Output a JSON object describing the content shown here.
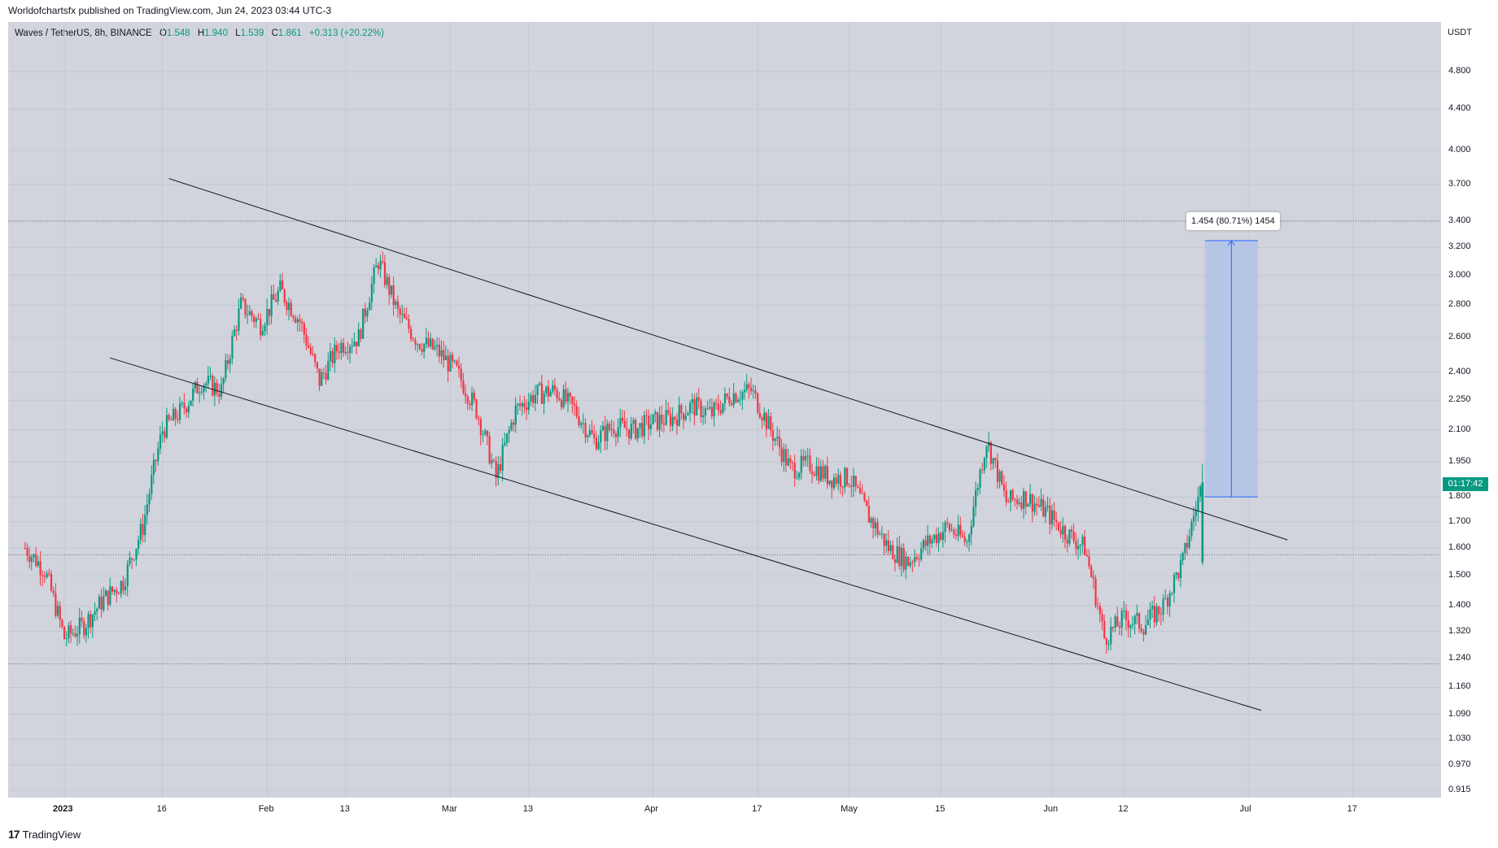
{
  "header": {
    "publisher_text": "Worldofchartsfx published on TradingView.com, Jun 24, 2023 03:44 UTC-3"
  },
  "legend": {
    "symbol": "Waves / TetherUS, 8h, BINANCE",
    "open_label": "O",
    "open": "1.548",
    "high_label": "H",
    "high": "1.940",
    "low_label": "L",
    "low": "1.539",
    "close_label": "C",
    "close": "1.861",
    "change": "+0.313 (+20.22%)"
  },
  "price_axis": {
    "unit": "USDT",
    "ticks": [
      "4.800",
      "4.400",
      "4.000",
      "3.700",
      "3.400",
      "3.200",
      "3.000",
      "2.800",
      "2.600",
      "2.400",
      "2.250",
      "2.100",
      "1.950",
      "1.800",
      "1.700",
      "1.600",
      "1.500",
      "1.400",
      "1.320",
      "1.240",
      "1.160",
      "1.090",
      "1.030",
      "0.970",
      "0.915"
    ]
  },
  "time_axis": {
    "ticks": [
      "2023",
      "16",
      "Feb",
      "13",
      "Mar",
      "13",
      "Apr",
      "17",
      "May",
      "15",
      "Jun",
      "12",
      "Jul",
      "17"
    ]
  },
  "countdown": "01:17:42",
  "measurement": {
    "label": "1.454 (80.71%) 1454"
  },
  "footer": {
    "brand": "TradingView",
    "logo_glyph": "17"
  },
  "colors": {
    "up": "#089981",
    "down": "#f23645",
    "pane_bg": "#d1d4dc",
    "measure_fill": "#b2c3e8",
    "measure_line": "#2962ff"
  },
  "chart_data": {
    "type": "candlestick",
    "symbol": "Waves / TetherUS",
    "interval": "8h",
    "exchange": "BINANCE",
    "scale": "log",
    "ylim": [
      0.9,
      5.0
    ],
    "x": [
      "2022-12-26",
      "2022-12-29",
      "2023-01-01",
      "2023-01-04",
      "2023-01-07",
      "2023-01-10",
      "2023-01-13",
      "2023-01-16",
      "2023-01-19",
      "2023-01-22",
      "2023-01-25",
      "2023-01-28",
      "2023-01-31",
      "2023-02-03",
      "2023-02-06",
      "2023-02-09",
      "2023-02-12",
      "2023-02-15",
      "2023-02-18",
      "2023-02-21",
      "2023-02-24",
      "2023-02-27",
      "2023-03-02",
      "2023-03-05",
      "2023-03-08",
      "2023-03-11",
      "2023-03-14",
      "2023-03-17",
      "2023-03-20",
      "2023-03-23",
      "2023-03-26",
      "2023-03-29",
      "2023-04-01",
      "2023-04-04",
      "2023-04-07",
      "2023-04-10",
      "2023-04-13",
      "2023-04-16",
      "2023-04-19",
      "2023-04-22",
      "2023-04-25",
      "2023-04-28",
      "2023-05-01",
      "2023-05-04",
      "2023-05-07",
      "2023-05-10",
      "2023-05-13",
      "2023-05-16",
      "2023-05-19",
      "2023-05-22",
      "2023-05-25",
      "2023-05-28",
      "2023-05-31",
      "2023-06-03",
      "2023-06-06",
      "2023-06-09",
      "2023-06-12",
      "2023-06-15",
      "2023-06-18",
      "2023-06-21",
      "2023-06-24"
    ],
    "close": [
      1.6,
      1.52,
      1.3,
      1.34,
      1.42,
      1.48,
      1.68,
      2.1,
      2.2,
      2.35,
      2.3,
      2.8,
      2.68,
      2.9,
      2.7,
      2.35,
      2.55,
      2.6,
      3.1,
      2.75,
      2.58,
      2.52,
      2.4,
      2.2,
      1.88,
      2.2,
      2.28,
      2.3,
      2.2,
      2.05,
      2.12,
      2.1,
      2.14,
      2.16,
      2.22,
      2.18,
      2.28,
      2.3,
      2.1,
      1.92,
      1.94,
      1.88,
      1.88,
      1.72,
      1.6,
      1.55,
      1.62,
      1.68,
      1.62,
      2.05,
      1.78,
      1.8,
      1.74,
      1.66,
      1.6,
      1.3,
      1.36,
      1.34,
      1.4,
      1.55,
      1.86
    ],
    "annotations": [
      {
        "type": "channel-upper",
        "from": [
          "2023-01-17",
          3.75
        ],
        "to": [
          "2023-07-07",
          1.63
        ]
      },
      {
        "type": "channel-lower",
        "from": [
          "2023-01-08",
          2.48
        ],
        "to": [
          "2023-07-03",
          1.1
        ]
      },
      {
        "type": "hline",
        "y": 3.4
      },
      {
        "type": "hline",
        "y": 1.575
      },
      {
        "type": "hline",
        "y": 1.225
      },
      {
        "type": "price-range",
        "x_from": "2023-06-24",
        "x_to": "2023-06-30",
        "y_from": 1.8,
        "y_to": 3.25,
        "label": "1.454 (80.71%) 1454"
      }
    ]
  }
}
